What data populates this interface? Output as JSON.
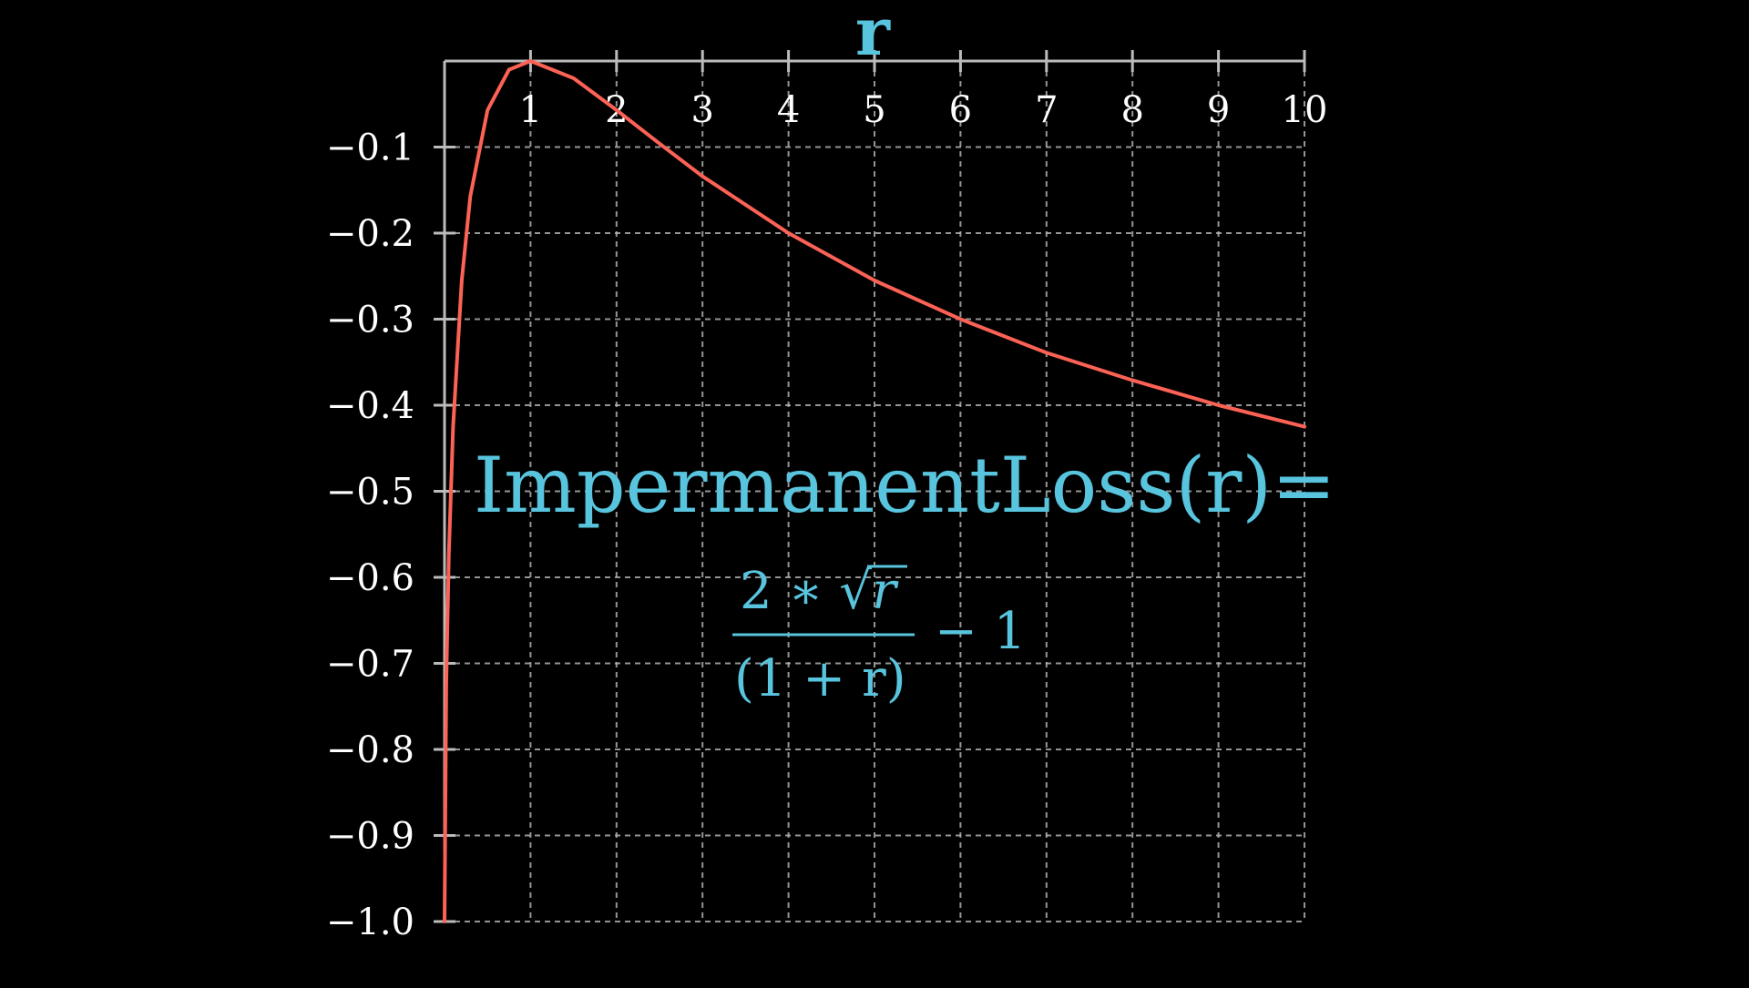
{
  "chart_data": {
    "type": "line",
    "xlabel": "r",
    "ylabel": "",
    "xlim": [
      0,
      10
    ],
    "ylim": [
      -1.0,
      0
    ],
    "x_ticks": [
      1,
      2,
      3,
      4,
      5,
      6,
      7,
      8,
      9,
      10
    ],
    "x_tick_labels": [
      "1",
      "2",
      "3",
      "4",
      "5",
      "6",
      "7",
      "8",
      "9",
      "10"
    ],
    "y_ticks": [
      -0.1,
      -0.2,
      -0.3,
      -0.4,
      -0.5,
      -0.6,
      -0.7,
      -0.8,
      -0.9,
      -1.0
    ],
    "y_tick_labels": [
      "−0.1",
      "−0.2",
      "−0.3",
      "−0.4",
      "−0.5",
      "−0.6",
      "−0.7",
      "−0.8",
      "−0.9",
      "−1.0"
    ],
    "grid": true,
    "function": "2*sqrt(r)/(1+r) - 1",
    "series": [
      {
        "x": [
          0,
          0.02,
          0.05,
          0.1,
          0.2,
          0.3,
          0.5,
          0.75,
          1,
          1.5,
          2,
          2.5,
          3,
          4,
          5,
          6,
          7,
          8,
          9,
          10
        ],
        "y": [
          -1.0,
          -0.723,
          -0.574,
          -0.425,
          -0.255,
          -0.157,
          -0.057,
          -0.01,
          0.0,
          -0.02,
          -0.057,
          -0.096,
          -0.134,
          -0.2,
          -0.255,
          -0.3,
          -0.339,
          -0.371,
          -0.4,
          -0.425
        ],
        "color": "#fc6255"
      }
    ],
    "annotation": {
      "title": "ImpermanentLoss(r)=",
      "numerator": "2 ∗ ",
      "sqrt_symbol": "√",
      "sqrt_arg": "r",
      "denominator": "(1 + r)",
      "tail": "− 1"
    }
  },
  "colors": {
    "background": "#000000",
    "axis": "#bbbbbb",
    "grid": "#bbbbbb",
    "curve": "#fc6255",
    "accent": "#58c4dd",
    "text": "#ffffff"
  }
}
